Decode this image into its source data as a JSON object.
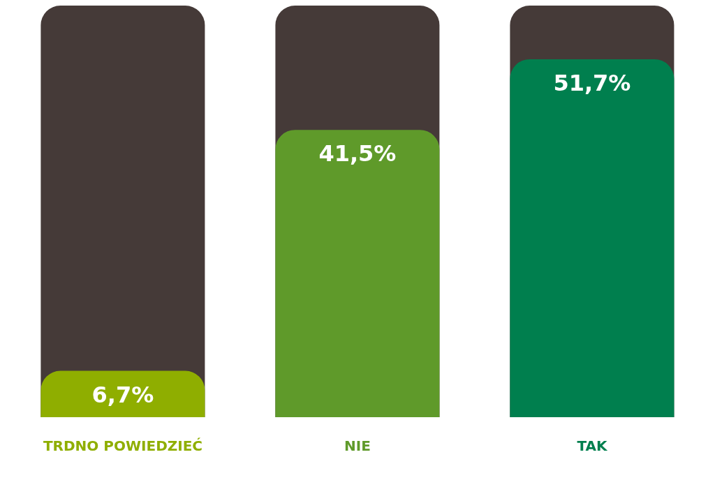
{
  "chart_data": {
    "type": "bar",
    "categories": [
      "TRDNO POWIEDZIEĆ",
      "NIE",
      "TAK"
    ],
    "values": [
      6.7,
      41.5,
      51.7
    ],
    "colors": [
      "#8fae00",
      "#5f9a2a",
      "#007f4e"
    ],
    "value_labels": [
      "6,7%",
      "41,5%",
      "51,7%"
    ]
  }
}
